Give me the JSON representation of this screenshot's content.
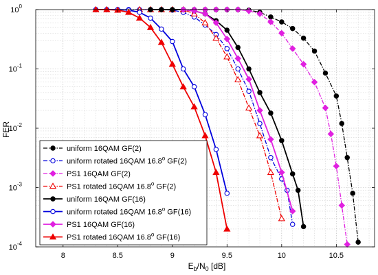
{
  "chart_data": {
    "type": "line",
    "xlabel": "Eb/N0 [dB]",
    "xlabel_parts": {
      "base1": "E",
      "sub1": "b",
      "mid": "/N",
      "sub2": "0",
      "unit": " [dB]"
    },
    "ylabel": "FER",
    "xlim": [
      7.75,
      10.85
    ],
    "ylim": [
      0.0001,
      1
    ],
    "yscale": "log",
    "grid": true,
    "legend_position": "lower-left",
    "x_ticks": [
      "8",
      "8.5",
      "9",
      "9.5",
      "10",
      "10.5"
    ],
    "y_ticks": [
      {
        "base": "10",
        "exp": "0"
      },
      {
        "base": "10",
        "exp": "-1"
      },
      {
        "base": "10",
        "exp": "-2"
      },
      {
        "base": "10",
        "exp": "-3"
      },
      {
        "base": "10",
        "exp": "-4"
      }
    ],
    "series": [
      {
        "name": "uniform 16QAM GF(2)",
        "name_parts": [
          "uniform 16QAM GF(2)"
        ],
        "color": "#000000",
        "dash": "dashdot",
        "marker": "filled-circle",
        "x": [
          8.8,
          8.9,
          9.0,
          9.1,
          9.2,
          9.3,
          9.4,
          9.5,
          9.6,
          9.7,
          9.8,
          9.9,
          10.0,
          10.1,
          10.2,
          10.3,
          10.4,
          10.5,
          10.55,
          10.6,
          10.65,
          10.7
        ],
        "y": [
          1.0,
          1.0,
          1.0,
          1.0,
          1.0,
          1.0,
          1.0,
          1.0,
          1.0,
          0.98,
          0.9,
          0.75,
          0.62,
          0.48,
          0.33,
          0.2,
          0.085,
          0.035,
          0.012,
          0.0032,
          0.0008,
          0.00012
        ]
      },
      {
        "name": "uniform rotated 16QAM 16.8° GF(2)",
        "name_parts": [
          "uniform rotated 16QAM  16.8",
          "o",
          " GF(2)"
        ],
        "color": "#0000dd",
        "dash": "dashdot",
        "marker": "open-circle",
        "x": [
          8.3,
          8.4,
          8.5,
          8.6,
          8.7,
          8.8,
          8.9,
          9.0,
          9.1,
          9.2,
          9.3,
          9.4,
          9.5,
          9.6,
          9.7,
          9.8,
          9.9,
          10.0,
          10.05,
          10.1
        ],
        "y": [
          1.0,
          1.0,
          1.0,
          1.0,
          1.0,
          1.0,
          1.0,
          0.98,
          0.9,
          0.75,
          0.55,
          0.38,
          0.22,
          0.1,
          0.042,
          0.012,
          0.0032,
          0.0014,
          0.0009,
          0.00024
        ]
      },
      {
        "name": "PS1 16QAM GF(2)",
        "name_parts": [
          "PS1 16QAM  GF(2)"
        ],
        "color": "#e020e0",
        "dash": "dashdot",
        "marker": "filled-diamond",
        "x": [
          9.2,
          9.3,
          9.4,
          9.5,
          9.6,
          9.7,
          9.8,
          9.9,
          10.0,
          10.1,
          10.2,
          10.3,
          10.4,
          10.45,
          10.5,
          10.55,
          10.6
        ],
        "y": [
          1.0,
          1.0,
          1.0,
          1.0,
          1.0,
          0.95,
          0.85,
          0.62,
          0.4,
          0.22,
          0.12,
          0.06,
          0.022,
          0.008,
          0.0023,
          0.0005,
          0.00011
        ]
      },
      {
        "name": "PS1 rotated 16QAM 16.8° GF(2)",
        "name_parts": [
          "PS1 rotated 16QAM  16.8",
          "o",
          " GF(2)"
        ],
        "color": "#ee0000",
        "dash": "dashdot",
        "marker": "open-triangle",
        "x": [
          8.7,
          8.8,
          8.9,
          9.0,
          9.1,
          9.2,
          9.3,
          9.4,
          9.5,
          9.6,
          9.7,
          9.8,
          9.9,
          10.0
        ],
        "y": [
          1.0,
          1.0,
          1.0,
          1.0,
          1.0,
          0.85,
          0.6,
          0.33,
          0.16,
          0.066,
          0.022,
          0.0075,
          0.0018,
          0.0003
        ]
      },
      {
        "name": "uniform 16QAM GF(16)",
        "name_parts": [
          "uniform 16QAM GF(16)"
        ],
        "color": "#000000",
        "dash": "solid",
        "marker": "filled-circle",
        "x": [
          8.8,
          8.9,
          9.0,
          9.1,
          9.2,
          9.3,
          9.4,
          9.5,
          9.6,
          9.7,
          9.8,
          9.9,
          10.0,
          10.1,
          10.15,
          10.2
        ],
        "y": [
          1.0,
          1.0,
          1.0,
          1.0,
          0.95,
          0.85,
          0.65,
          0.45,
          0.23,
          0.1,
          0.04,
          0.018,
          0.0062,
          0.0017,
          0.0009,
          0.00022
        ]
      },
      {
        "name": "uniform rotated 16QAM 16.8° GF(16)",
        "name_parts": [
          "uniform rotated 16QAM  16.8",
          "o",
          " GF(16)"
        ],
        "color": "#0000dd",
        "dash": "solid",
        "marker": "open-circle",
        "x": [
          8.3,
          8.4,
          8.5,
          8.6,
          8.7,
          8.8,
          8.9,
          9.0,
          9.1,
          9.2,
          9.3,
          9.4,
          9.5
        ],
        "y": [
          1.0,
          1.0,
          1.0,
          0.98,
          0.9,
          0.72,
          0.47,
          0.29,
          0.1,
          0.05,
          0.017,
          0.0044,
          0.0008
        ]
      },
      {
        "name": "PS1 16QAM GF(16)",
        "name_parts": [
          "PS1 16QAM  GF(16)"
        ],
        "color": "#e020e0",
        "dash": "solid",
        "marker": "filled-diamond",
        "x": [
          9.1,
          9.2,
          9.3,
          9.4,
          9.5,
          9.6,
          9.7,
          9.8,
          9.9,
          10.0,
          10.1
        ],
        "y": [
          1.0,
          0.95,
          0.85,
          0.6,
          0.32,
          0.15,
          0.067,
          0.02,
          0.0065,
          0.0018,
          0.0004
        ]
      },
      {
        "name": "PS1 rotated 16QAM 16.8° GF(16)",
        "name_parts": [
          "PS1 rotated 16QAM  16.8",
          "o",
          " GF(16)"
        ],
        "color": "#ee0000",
        "dash": "solid",
        "marker": "filled-triangle",
        "x": [
          8.3,
          8.4,
          8.5,
          8.6,
          8.7,
          8.8,
          8.9,
          9.0,
          9.1,
          9.2,
          9.3,
          9.4,
          9.5
        ],
        "y": [
          1.0,
          1.0,
          0.98,
          0.9,
          0.72,
          0.5,
          0.28,
          0.12,
          0.05,
          0.023,
          0.0075,
          0.0018,
          0.0002
        ]
      }
    ]
  }
}
